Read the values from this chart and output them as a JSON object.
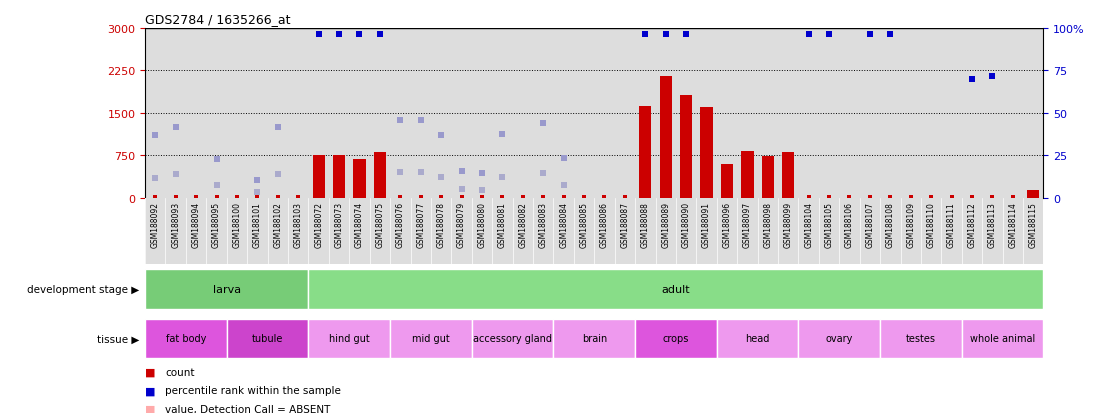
{
  "title": "GDS2784 / 1635266_at",
  "samples": [
    "GSM188092",
    "GSM188093",
    "GSM188094",
    "GSM188095",
    "GSM188100",
    "GSM188101",
    "GSM188102",
    "GSM188103",
    "GSM188072",
    "GSM188073",
    "GSM188074",
    "GSM188075",
    "GSM188076",
    "GSM188077",
    "GSM188078",
    "GSM188079",
    "GSM188080",
    "GSM188081",
    "GSM188082",
    "GSM188083",
    "GSM188084",
    "GSM188085",
    "GSM188086",
    "GSM188087",
    "GSM188088",
    "GSM188089",
    "GSM188090",
    "GSM188091",
    "GSM188096",
    "GSM188097",
    "GSM188098",
    "GSM188099",
    "GSM188104",
    "GSM188105",
    "GSM188106",
    "GSM188107",
    "GSM188108",
    "GSM188109",
    "GSM188110",
    "GSM188111",
    "GSM188112",
    "GSM188113",
    "GSM188114",
    "GSM188115"
  ],
  "count_values": [
    0,
    0,
    0,
    0,
    0,
    0,
    0,
    0,
    760,
    760,
    680,
    800,
    0,
    0,
    0,
    0,
    0,
    0,
    0,
    0,
    0,
    0,
    0,
    0,
    1620,
    2150,
    1820,
    1600,
    590,
    820,
    730,
    810,
    0,
    0,
    0,
    0,
    0,
    0,
    0,
    0,
    0,
    0,
    0,
    130
  ],
  "blue_dot_values": [
    null,
    null,
    null,
    null,
    null,
    null,
    null,
    null,
    2900,
    2900,
    2900,
    2900,
    null,
    null,
    null,
    null,
    null,
    null,
    null,
    null,
    null,
    null,
    null,
    null,
    2900,
    2900,
    2900,
    null,
    null,
    null,
    null,
    null,
    2900,
    2900,
    null,
    2900,
    2900,
    null,
    null,
    null,
    2100,
    2150,
    null,
    null
  ],
  "purple_dot_values": [
    1100,
    1250,
    null,
    680,
    null,
    310,
    1250,
    null,
    null,
    null,
    null,
    null,
    1380,
    1380,
    1100,
    480,
    430,
    1120,
    null,
    1320,
    700,
    null,
    null,
    null,
    null,
    null,
    null,
    null,
    null,
    null,
    null,
    null,
    null,
    null,
    null,
    null,
    null,
    null,
    null,
    null,
    null,
    null,
    null,
    null
  ],
  "purple_rank_dot_values": [
    350,
    420,
    null,
    220,
    null,
    100,
    420,
    null,
    null,
    null,
    null,
    null,
    460,
    460,
    370,
    160,
    140,
    370,
    null,
    440,
    230,
    null,
    null,
    null,
    null,
    null,
    null,
    null,
    null,
    null,
    null,
    null,
    null,
    null,
    null,
    null,
    null,
    null,
    null,
    null,
    null,
    null,
    null,
    null
  ],
  "count_absent_values": [
    null,
    null,
    null,
    null,
    null,
    null,
    null,
    null,
    null,
    null,
    null,
    null,
    null,
    null,
    null,
    null,
    null,
    null,
    null,
    null,
    null,
    null,
    null,
    null,
    null,
    null,
    null,
    null,
    null,
    null,
    null,
    null,
    null,
    null,
    null,
    null,
    null,
    null,
    null,
    null,
    null,
    null,
    null,
    null
  ],
  "ylim_left": [
    0,
    3000
  ],
  "ylim_right": [
    0,
    100
  ],
  "yticks_left": [
    0,
    750,
    1500,
    2250,
    3000
  ],
  "yticks_right": [
    0,
    25,
    50,
    75,
    100
  ],
  "ytick_right_labels": [
    "0",
    "25",
    "50",
    "75",
    "100%"
  ],
  "left_color": "#cc0000",
  "right_color": "#0000cc",
  "bar_color": "#cc0000",
  "blue_dot_color": "#0000cc",
  "purple_dot_color": "#9999cc",
  "absent_count_color": "#ffaaaa",
  "absent_rank_color": "#aaaacc",
  "plot_bg_color": "#dddddd",
  "development_stages": [
    {
      "label": "larva",
      "start": 0,
      "end": 7,
      "color": "#77cc77"
    },
    {
      "label": "adult",
      "start": 8,
      "end": 43,
      "color": "#88dd88"
    }
  ],
  "tissues": [
    {
      "label": "fat body",
      "start": 0,
      "end": 3,
      "color": "#dd55dd"
    },
    {
      "label": "tubule",
      "start": 4,
      "end": 7,
      "color": "#cc44cc"
    },
    {
      "label": "hind gut",
      "start": 8,
      "end": 11,
      "color": "#ee99ee"
    },
    {
      "label": "mid gut",
      "start": 12,
      "end": 15,
      "color": "#ee99ee"
    },
    {
      "label": "accessory gland",
      "start": 16,
      "end": 19,
      "color": "#ee99ee"
    },
    {
      "label": "brain",
      "start": 20,
      "end": 23,
      "color": "#ee99ee"
    },
    {
      "label": "crops",
      "start": 24,
      "end": 27,
      "color": "#dd55dd"
    },
    {
      "label": "head",
      "start": 28,
      "end": 31,
      "color": "#ee99ee"
    },
    {
      "label": "ovary",
      "start": 32,
      "end": 35,
      "color": "#ee99ee"
    },
    {
      "label": "testes",
      "start": 36,
      "end": 39,
      "color": "#ee99ee"
    },
    {
      "label": "whole animal",
      "start": 40,
      "end": 43,
      "color": "#ee99ee"
    }
  ]
}
